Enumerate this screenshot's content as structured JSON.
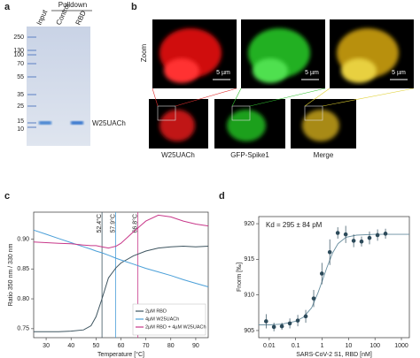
{
  "panel_a": {
    "letter": "a",
    "header": "Pulldown",
    "lanes": [
      "Input",
      "Control",
      "RBD"
    ],
    "markers": [
      "250",
      "130",
      "100",
      "70",
      "55",
      "35",
      "25",
      "15",
      "10"
    ],
    "band_label": "W25UACh"
  },
  "panel_b": {
    "letter": "b",
    "zoom_label": "Zoom",
    "scale_labels": [
      "5 µm",
      "5 µm",
      "5 µm"
    ],
    "channels": [
      "W25UACh",
      "GFP-Spike1",
      "Merge"
    ]
  },
  "chart_data": [
    {
      "type": "line",
      "panel_letter": "c",
      "x_label": "Temperature [°C]",
      "y_label": "Ratio 350 nm / 330 nm",
      "x": [
        25,
        30,
        35,
        40,
        45,
        48,
        50,
        52.4,
        55,
        58,
        60,
        65,
        70,
        75,
        80,
        85,
        90,
        95
      ],
      "series": [
        {
          "name": "2µM RBD",
          "color": "#3e5560",
          "values": [
            0.745,
            0.745,
            0.745,
            0.746,
            0.748,
            0.755,
            0.77,
            0.8,
            0.835,
            0.852,
            0.86,
            0.872,
            0.88,
            0.885,
            0.887,
            0.888,
            0.887,
            0.888
          ]
        },
        {
          "name": "4µM W25UACh",
          "color": "#4a9fd8",
          "values": [
            0.915,
            0.908,
            0.901,
            0.894,
            0.887,
            0.883,
            0.88,
            0.877,
            0.873,
            0.868,
            0.865,
            0.858,
            0.851,
            0.845,
            0.839,
            0.832,
            0.826,
            0.82
          ]
        },
        {
          "name": "2µM RBD + 4µM W25UACh",
          "color": "#c8388a",
          "values": [
            0.895,
            0.894,
            0.893,
            0.892,
            0.89,
            0.889,
            0.889,
            0.887,
            0.885,
            0.888,
            0.893,
            0.912,
            0.93,
            0.94,
            0.937,
            0.93,
            0.925,
            0.922
          ]
        }
      ],
      "vlines": [
        {
          "value": 52.4,
          "label": "52.4°C",
          "color": "#3e5560"
        },
        {
          "value": 57.9,
          "label": "57.9°C",
          "color": "#4a9fd8"
        },
        {
          "value": 66.8,
          "label": "66.8°C",
          "color": "#c8388a"
        }
      ],
      "xlim": [
        25,
        95
      ],
      "xticks": [
        30,
        40,
        50,
        60,
        70,
        80,
        90
      ],
      "ylim": [
        0.735,
        0.945
      ],
      "yticks": [
        0.75,
        {
          "value": 0.8,
          "label": "0.80"
        },
        0.85,
        {
          "value": 0.9,
          "label": "0.90"
        }
      ],
      "legend": "lower right"
    },
    {
      "type": "scatter",
      "panel_letter": "d",
      "x_label": "SARS-CoV-2 S1, RBD [nM]",
      "y_label": "Fnorm [‰]",
      "annotation": "Kd = 295 ± 84 pM",
      "xlog": true,
      "x": [
        0.0076,
        0.015,
        0.03,
        0.06,
        0.12,
        0.24,
        0.48,
        0.98,
        1.95,
        3.9,
        7.8,
        15.6,
        31,
        62,
        125,
        250
      ],
      "series": [
        {
          "color": "#2c4a5a",
          "values": [
            906.3,
            905.5,
            905.6,
            906.0,
            906.4,
            907.0,
            909.5,
            913.0,
            916.0,
            918.7,
            918.5,
            917.6,
            917.5,
            918.0,
            918.4,
            918.6
          ],
          "errors": [
            1.0,
            0.6,
            0.5,
            0.7,
            0.8,
            0.9,
            1.2,
            1.5,
            1.8,
            0.8,
            1.2,
            0.9,
            0.7,
            0.9,
            0.8,
            0.7
          ]
        }
      ],
      "fit": {
        "color": "#6a8fa0",
        "x": [
          0.004,
          0.01,
          0.03,
          0.1,
          0.2,
          0.4,
          0.7,
          1,
          1.5,
          2.5,
          4,
          8,
          20,
          100,
          1000,
          2000
        ],
        "values": [
          905.8,
          905.8,
          905.9,
          906.3,
          906.9,
          908.2,
          910.3,
          911.9,
          913.8,
          915.9,
          917.2,
          918.1,
          918.4,
          918.5,
          918.5,
          918.5
        ]
      },
      "xlim": [
        0.004,
        2000
      ],
      "xticks": [
        0.01,
        0.1,
        1,
        10,
        100,
        1000
      ],
      "ylim": [
        904,
        921
      ],
      "yticks": [
        905,
        910,
        915,
        920
      ]
    }
  ]
}
